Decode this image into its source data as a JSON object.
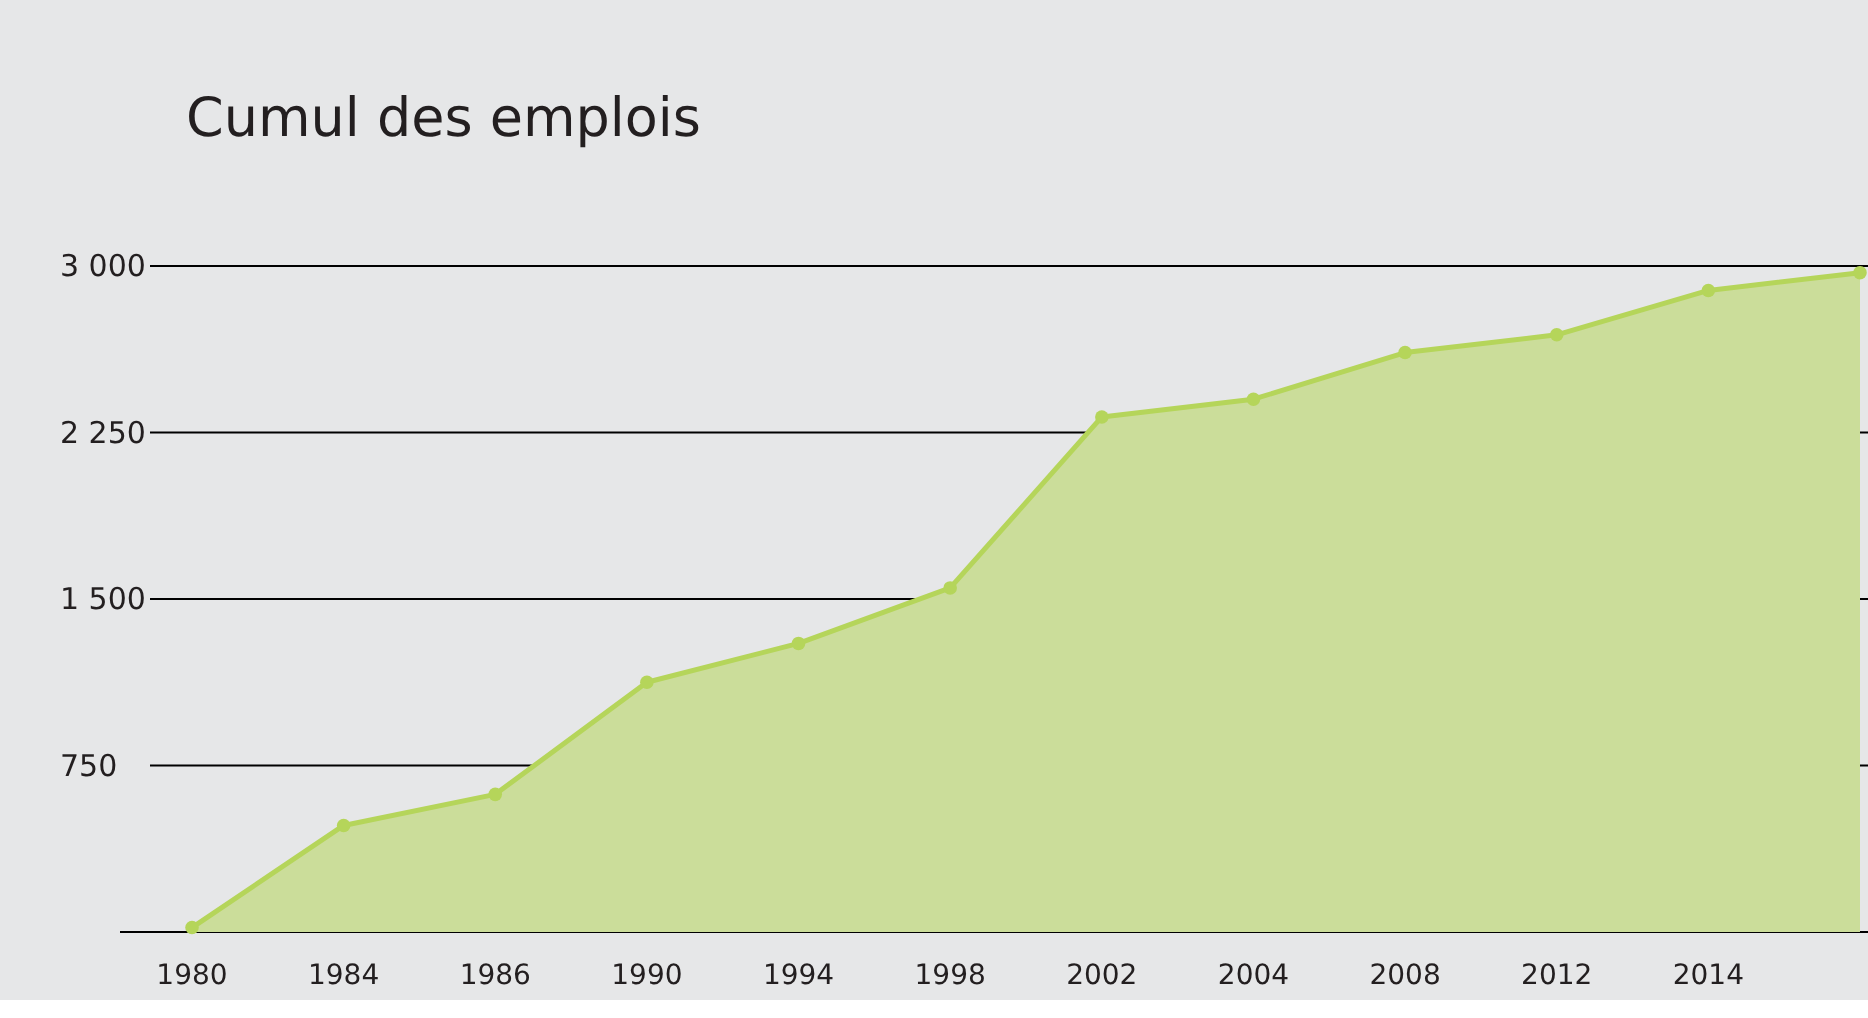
{
  "chart_data": {
    "type": "area",
    "title": "Cumul des emplois",
    "categories": [
      "1980",
      "1984",
      "1986",
      "1990",
      "1994",
      "1998",
      "2002",
      "2004",
      "2008",
      "2012",
      "2014",
      null
    ],
    "series": [
      {
        "color": "#b5d55a",
        "values": [
          20,
          480,
          620,
          1125,
          1300,
          1550,
          2320,
          2400,
          2610,
          2690,
          2890,
          2970
        ]
      }
    ],
    "ylim": [
      0,
      3000
    ],
    "yticks": [
      {
        "value": 0,
        "label": null
      },
      {
        "value": 750,
        "label": "750"
      },
      {
        "value": 1500,
        "label": "1 500"
      },
      {
        "value": 2250,
        "label": "2 250"
      },
      {
        "value": 3000,
        "label": "3 000"
      }
    ],
    "grid": "y",
    "marker": "circle",
    "line_style": "solid"
  }
}
